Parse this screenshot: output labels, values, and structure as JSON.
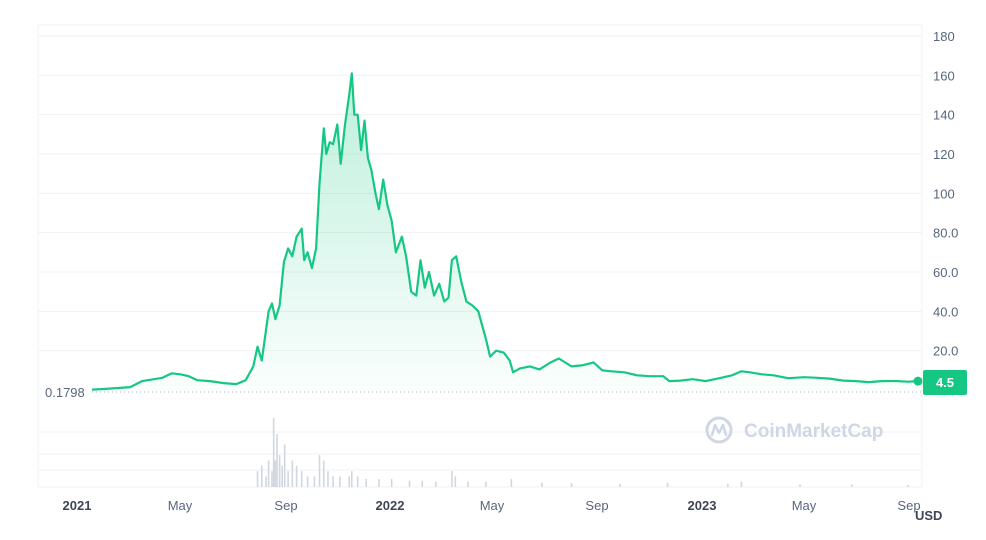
{
  "chart_data": {
    "type": "area",
    "title": "",
    "currency": "USD",
    "x_ticks": [
      "2021",
      "May",
      "Sep",
      "2022",
      "May",
      "Sep",
      "2023",
      "May",
      "Sep"
    ],
    "x_tick_years": [
      "2021",
      "2022",
      "2023"
    ],
    "y_ticks": [
      "20.0",
      "40.0",
      "60.0",
      "80.0",
      "100",
      "120",
      "140",
      "160",
      "180"
    ],
    "ylim": [
      0,
      180
    ],
    "start_value_label": "0.1798",
    "last_value_label": "4.5",
    "watermark": "CoinMarketCap",
    "colors": {
      "line": "#16c784",
      "area_top": "#16c784",
      "volume": "#d1d7e0",
      "grid": "#eff2f5",
      "axis_text": "#58667e"
    },
    "grid": true,
    "series": [
      {
        "values": [
          [
            "2021-01-01",
            0.2
          ],
          [
            "2021-01-15",
            0.5
          ],
          [
            "2021-02-01",
            1.0
          ],
          [
            "2021-02-15",
            1.5
          ],
          [
            "2021-03-01",
            4.5
          ],
          [
            "2021-03-15",
            5.5
          ],
          [
            "2021-03-25",
            6.2
          ],
          [
            "2021-04-05",
            8.5
          ],
          [
            "2021-04-15",
            8.0
          ],
          [
            "2021-04-25",
            7.0
          ],
          [
            "2021-05-05",
            5.0
          ],
          [
            "2021-05-20",
            4.5
          ],
          [
            "2021-06-05",
            3.5
          ],
          [
            "2021-06-20",
            3.0
          ],
          [
            "2021-07-01",
            5.0
          ],
          [
            "2021-07-10",
            12.0
          ],
          [
            "2021-07-15",
            22.0
          ],
          [
            "2021-07-20",
            15.0
          ],
          [
            "2021-07-28",
            40.0
          ],
          [
            "2021-08-01",
            44.0
          ],
          [
            "2021-08-05",
            36.0
          ],
          [
            "2021-08-10",
            43.0
          ],
          [
            "2021-08-15",
            65.0
          ],
          [
            "2021-08-20",
            72.0
          ],
          [
            "2021-08-25",
            68.0
          ],
          [
            "2021-08-30",
            78.0
          ],
          [
            "2021-09-05",
            82.0
          ],
          [
            "2021-09-08",
            66.0
          ],
          [
            "2021-09-12",
            70.0
          ],
          [
            "2021-09-17",
            62.0
          ],
          [
            "2021-09-22",
            72.0
          ],
          [
            "2021-09-26",
            105.0
          ],
          [
            "2021-10-01",
            133.0
          ],
          [
            "2021-10-04",
            120.0
          ],
          [
            "2021-10-08",
            126.0
          ],
          [
            "2021-10-12",
            125.0
          ],
          [
            "2021-10-17",
            135.0
          ],
          [
            "2021-10-21",
            115.0
          ],
          [
            "2021-10-26",
            135.0
          ],
          [
            "2021-10-31",
            150.0
          ],
          [
            "2021-11-03",
            161.0
          ],
          [
            "2021-11-06",
            140.0
          ],
          [
            "2021-11-10",
            140.0
          ],
          [
            "2021-11-14",
            122.0
          ],
          [
            "2021-11-18",
            137.0
          ],
          [
            "2021-11-22",
            118.0
          ],
          [
            "2021-11-26",
            112.0
          ],
          [
            "2021-12-01",
            100.0
          ],
          [
            "2021-12-05",
            92.0
          ],
          [
            "2021-12-10",
            107.0
          ],
          [
            "2021-12-15",
            94.0
          ],
          [
            "2021-12-20",
            86.0
          ],
          [
            "2021-12-25",
            70.0
          ],
          [
            "2022-01-01",
            78.0
          ],
          [
            "2022-01-06",
            68.0
          ],
          [
            "2022-01-12",
            50.0
          ],
          [
            "2022-01-18",
            48.0
          ],
          [
            "2022-01-23",
            66.0
          ],
          [
            "2022-01-28",
            52.0
          ],
          [
            "2022-02-02",
            60.0
          ],
          [
            "2022-02-08",
            48.0
          ],
          [
            "2022-02-14",
            54.0
          ],
          [
            "2022-02-20",
            45.0
          ],
          [
            "2022-02-25",
            47.0
          ],
          [
            "2022-03-01",
            66.0
          ],
          [
            "2022-03-06",
            68.0
          ],
          [
            "2022-03-12",
            55.0
          ],
          [
            "2022-03-18",
            45.0
          ],
          [
            "2022-03-25",
            43.0
          ],
          [
            "2022-04-01",
            40.0
          ],
          [
            "2022-04-10",
            26.0
          ],
          [
            "2022-04-15",
            17.0
          ],
          [
            "2022-04-22",
            20.0
          ],
          [
            "2022-05-01",
            19.0
          ],
          [
            "2022-05-08",
            15.0
          ],
          [
            "2022-05-12",
            9.0
          ],
          [
            "2022-05-20",
            11.0
          ],
          [
            "2022-06-01",
            12.0
          ],
          [
            "2022-06-12",
            10.5
          ],
          [
            "2022-06-25",
            14.0
          ],
          [
            "2022-07-05",
            16.0
          ],
          [
            "2022-07-20",
            12.0
          ],
          [
            "2022-08-01",
            12.5
          ],
          [
            "2022-08-15",
            14.0
          ],
          [
            "2022-08-25",
            10.0
          ],
          [
            "2022-09-05",
            9.5
          ],
          [
            "2022-09-20",
            9.0
          ],
          [
            "2022-10-05",
            7.5
          ],
          [
            "2022-10-20",
            7.0
          ],
          [
            "2022-11-05",
            7.0
          ],
          [
            "2022-11-12",
            4.5
          ],
          [
            "2022-11-25",
            4.8
          ],
          [
            "2022-12-10",
            5.5
          ],
          [
            "2022-12-25",
            4.5
          ],
          [
            "2023-01-10",
            6.0
          ],
          [
            "2023-01-25",
            7.5
          ],
          [
            "2023-02-05",
            9.5
          ],
          [
            "2023-02-15",
            9.0
          ],
          [
            "2023-03-01",
            8.0
          ],
          [
            "2023-03-15",
            7.5
          ],
          [
            "2023-04-01",
            6.0
          ],
          [
            "2023-04-20",
            6.5
          ],
          [
            "2023-05-05",
            6.2
          ],
          [
            "2023-05-20",
            5.8
          ],
          [
            "2023-06-05",
            4.8
          ],
          [
            "2023-06-20",
            4.5
          ],
          [
            "2023-07-05",
            4.0
          ],
          [
            "2023-07-20",
            4.5
          ],
          [
            "2023-08-05",
            4.6
          ],
          [
            "2023-08-20",
            4.2
          ],
          [
            "2023-09-01",
            4.5
          ]
        ]
      }
    ],
    "volume": [
      [
        "2021-07-15",
        3
      ],
      [
        "2021-07-20",
        4
      ],
      [
        "2021-07-25",
        2
      ],
      [
        "2021-07-28",
        5
      ],
      [
        "2021-08-01",
        3
      ],
      [
        "2021-08-03",
        13
      ],
      [
        "2021-08-05",
        5
      ],
      [
        "2021-08-07",
        10
      ],
      [
        "2021-08-10",
        6
      ],
      [
        "2021-08-13",
        4
      ],
      [
        "2021-08-16",
        8
      ],
      [
        "2021-08-20",
        3
      ],
      [
        "2021-08-25",
        5
      ],
      [
        "2021-08-30",
        4
      ],
      [
        "2021-09-05",
        3
      ],
      [
        "2021-09-12",
        2
      ],
      [
        "2021-09-20",
        2
      ],
      [
        "2021-09-26",
        6
      ],
      [
        "2021-10-01",
        5
      ],
      [
        "2021-10-06",
        3
      ],
      [
        "2021-10-12",
        2
      ],
      [
        "2021-10-20",
        2
      ],
      [
        "2021-10-31",
        2
      ],
      [
        "2021-11-03",
        3
      ],
      [
        "2021-11-10",
        2
      ],
      [
        "2021-11-20",
        1.5
      ],
      [
        "2021-12-05",
        1.5
      ],
      [
        "2021-12-20",
        1.5
      ],
      [
        "2022-01-10",
        1.2
      ],
      [
        "2022-01-25",
        1.2
      ],
      [
        "2022-02-10",
        1
      ],
      [
        "2022-03-01",
        3
      ],
      [
        "2022-03-05",
        2
      ],
      [
        "2022-03-20",
        1
      ],
      [
        "2022-04-10",
        1
      ],
      [
        "2022-05-10",
        1.5
      ],
      [
        "2022-06-15",
        0.8
      ],
      [
        "2022-07-20",
        0.7
      ],
      [
        "2022-09-15",
        0.6
      ],
      [
        "2022-11-10",
        0.8
      ],
      [
        "2023-01-20",
        0.6
      ],
      [
        "2023-02-05",
        1
      ],
      [
        "2023-04-15",
        0.5
      ],
      [
        "2023-06-15",
        0.5
      ],
      [
        "2023-08-20",
        0.4
      ]
    ]
  }
}
